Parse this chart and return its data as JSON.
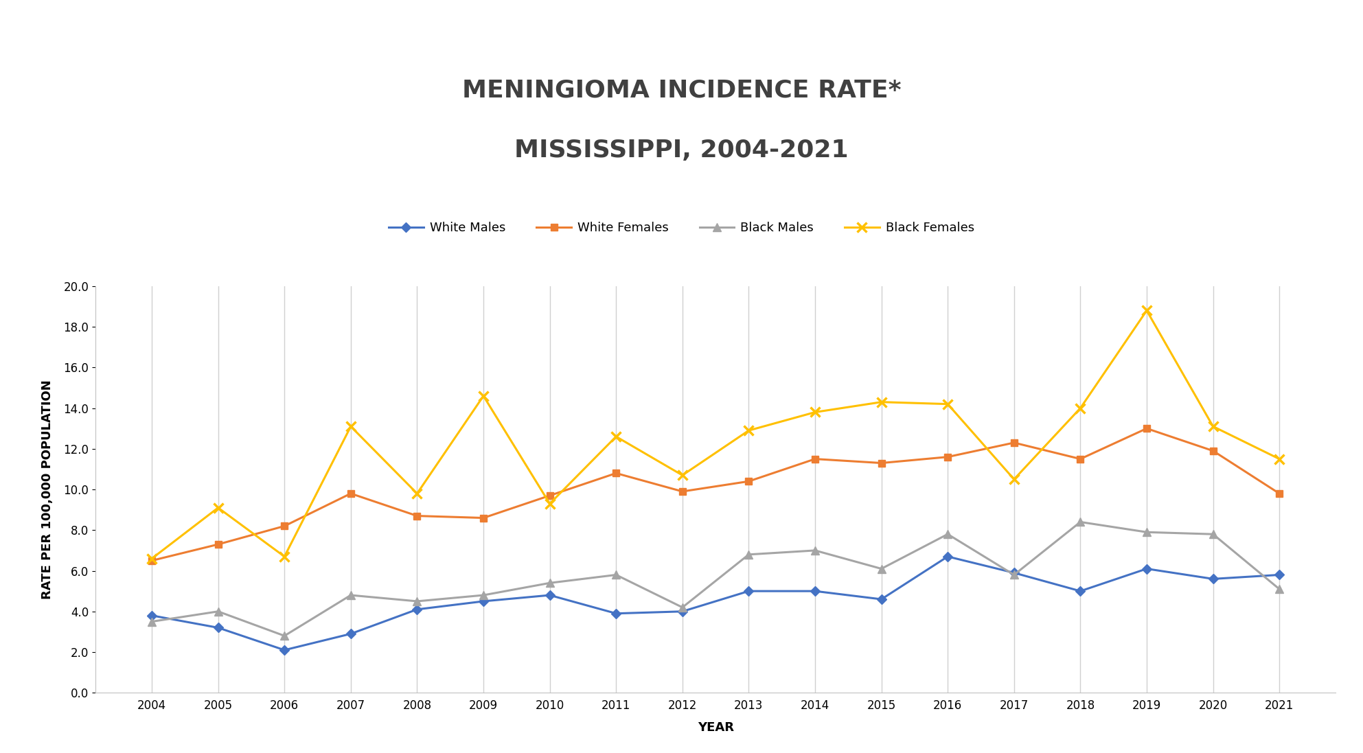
{
  "title_line1": "MENINGIOMA INCIDENCE RATE*",
  "title_line2": "MISSISSIPPI, 2004-2021",
  "xlabel": "YEAR",
  "ylabel": "RATE PER 100,000 POPULATION",
  "years": [
    2004,
    2005,
    2006,
    2007,
    2008,
    2009,
    2010,
    2011,
    2012,
    2013,
    2014,
    2015,
    2016,
    2017,
    2018,
    2019,
    2020,
    2021
  ],
  "white_males": [
    3.8,
    3.2,
    2.1,
    2.9,
    4.1,
    4.5,
    4.8,
    3.9,
    4.0,
    5.0,
    5.0,
    4.6,
    6.7,
    5.9,
    5.0,
    6.1,
    5.6,
    5.8
  ],
  "white_females": [
    6.5,
    7.3,
    8.2,
    9.8,
    8.7,
    8.6,
    9.7,
    10.8,
    9.9,
    10.4,
    11.5,
    11.3,
    11.6,
    12.3,
    11.5,
    13.0,
    11.9,
    9.8
  ],
  "black_males": [
    3.5,
    4.0,
    2.8,
    4.8,
    4.5,
    4.8,
    5.4,
    5.8,
    4.2,
    6.8,
    7.0,
    6.1,
    7.8,
    5.8,
    8.4,
    7.9,
    7.8,
    5.1
  ],
  "black_females": [
    6.6,
    9.1,
    6.7,
    13.1,
    9.8,
    14.6,
    9.3,
    12.6,
    10.7,
    12.9,
    13.8,
    14.3,
    14.2,
    10.5,
    14.0,
    18.8,
    13.1,
    11.5
  ],
  "white_males_color": "#4472C4",
  "white_females_color": "#ED7D31",
  "black_males_color": "#A5A5A5",
  "black_females_color": "#FFC000",
  "ylim": [
    0.0,
    20.0
  ],
  "yticks": [
    0.0,
    2.0,
    4.0,
    6.0,
    8.0,
    10.0,
    12.0,
    14.0,
    16.0,
    18.0,
    20.0
  ],
  "legend_labels": [
    "White Males",
    "White Females",
    "Black Males",
    "Black Females"
  ],
  "background_color": "#FFFFFF",
  "plot_bg_color": "#FFFFFF",
  "grid_color": "#D0D0D0",
  "title_fontsize": 26,
  "axis_label_fontsize": 13,
  "tick_fontsize": 12,
  "legend_fontsize": 13,
  "title_color": "#404040"
}
